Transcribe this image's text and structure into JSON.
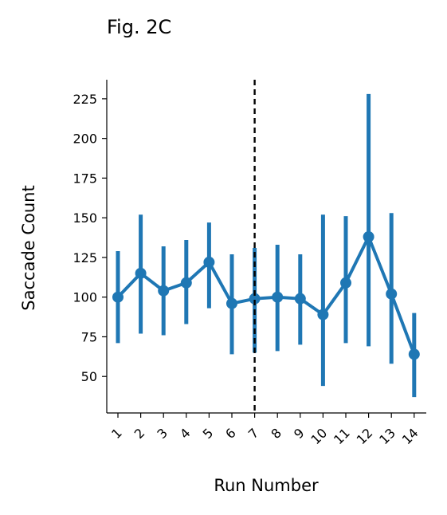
{
  "chart_data": {
    "type": "line",
    "title": "Fig. 2C",
    "xlabel": "Run Number",
    "ylabel": "Saccade Count",
    "categories": [
      "1",
      "2",
      "3",
      "4",
      "5",
      "6",
      "7",
      "8",
      "9",
      "10",
      "11",
      "12",
      "13",
      "14"
    ],
    "series": [
      {
        "values": [
          100,
          115,
          104,
          109,
          122,
          96,
          99,
          100,
          99,
          89,
          109,
          138,
          102,
          64
        ],
        "error_low": [
          71,
          77,
          76,
          83,
          93,
          64,
          65,
          66,
          70,
          44,
          71,
          69,
          58,
          37
        ],
        "error_high": [
          129,
          152,
          132,
          136,
          147,
          127,
          131,
          133,
          127,
          152,
          151,
          228,
          153,
          90
        ],
        "color": "#1f77b4"
      }
    ],
    "yticks": [
      50,
      75,
      100,
      125,
      150,
      175,
      200,
      225
    ],
    "ylim": [
      27,
      237
    ],
    "vline": {
      "category": "7",
      "style": "dashed",
      "color": "#000000"
    },
    "grid": false,
    "legend": "none"
  }
}
